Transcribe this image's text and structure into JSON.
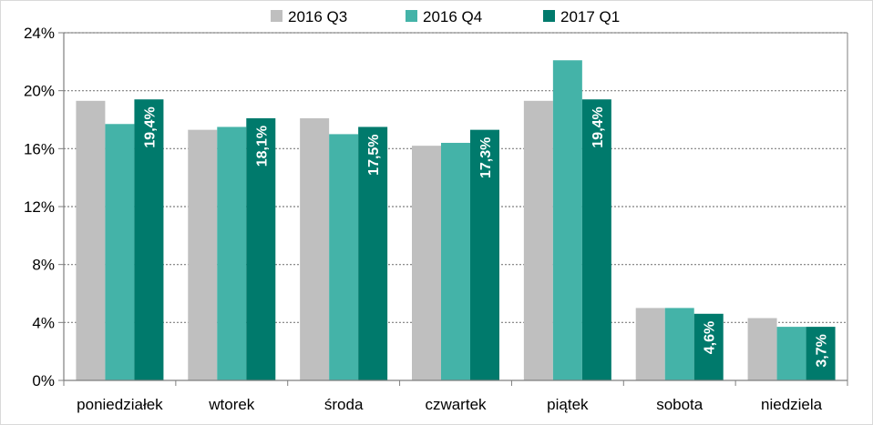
{
  "chart_data": {
    "type": "bar",
    "title": "",
    "xlabel": "",
    "ylabel": "",
    "ylim": [
      0,
      24
    ],
    "yticks": [
      0,
      4,
      8,
      12,
      16,
      20,
      24
    ],
    "ytick_labels": [
      "0%",
      "4%",
      "8%",
      "12%",
      "16%",
      "20%",
      "24%"
    ],
    "grid": "horizontal dotted",
    "legend_position": "top-center",
    "categories": [
      "poniedziałek",
      "wtorek",
      "środa",
      "czwartek",
      "piątek",
      "sobota",
      "niedziela"
    ],
    "series": [
      {
        "name": "2016 Q3",
        "color": "#bfbfbf",
        "values": [
          19.3,
          17.3,
          18.1,
          16.2,
          19.3,
          5.0,
          4.3
        ]
      },
      {
        "name": "2016 Q4",
        "color": "#44b3a8",
        "values": [
          17.7,
          17.5,
          17.0,
          16.4,
          22.1,
          5.0,
          3.7
        ]
      },
      {
        "name": "2017 Q1",
        "color": "#007a6c",
        "values": [
          19.4,
          18.1,
          17.5,
          17.3,
          19.4,
          4.6,
          3.7
        ],
        "data_labels": [
          "19,4%",
          "18,1%",
          "17,5%",
          "17,3%",
          "19,4%",
          "4,6%",
          "3,7%"
        ]
      }
    ]
  }
}
